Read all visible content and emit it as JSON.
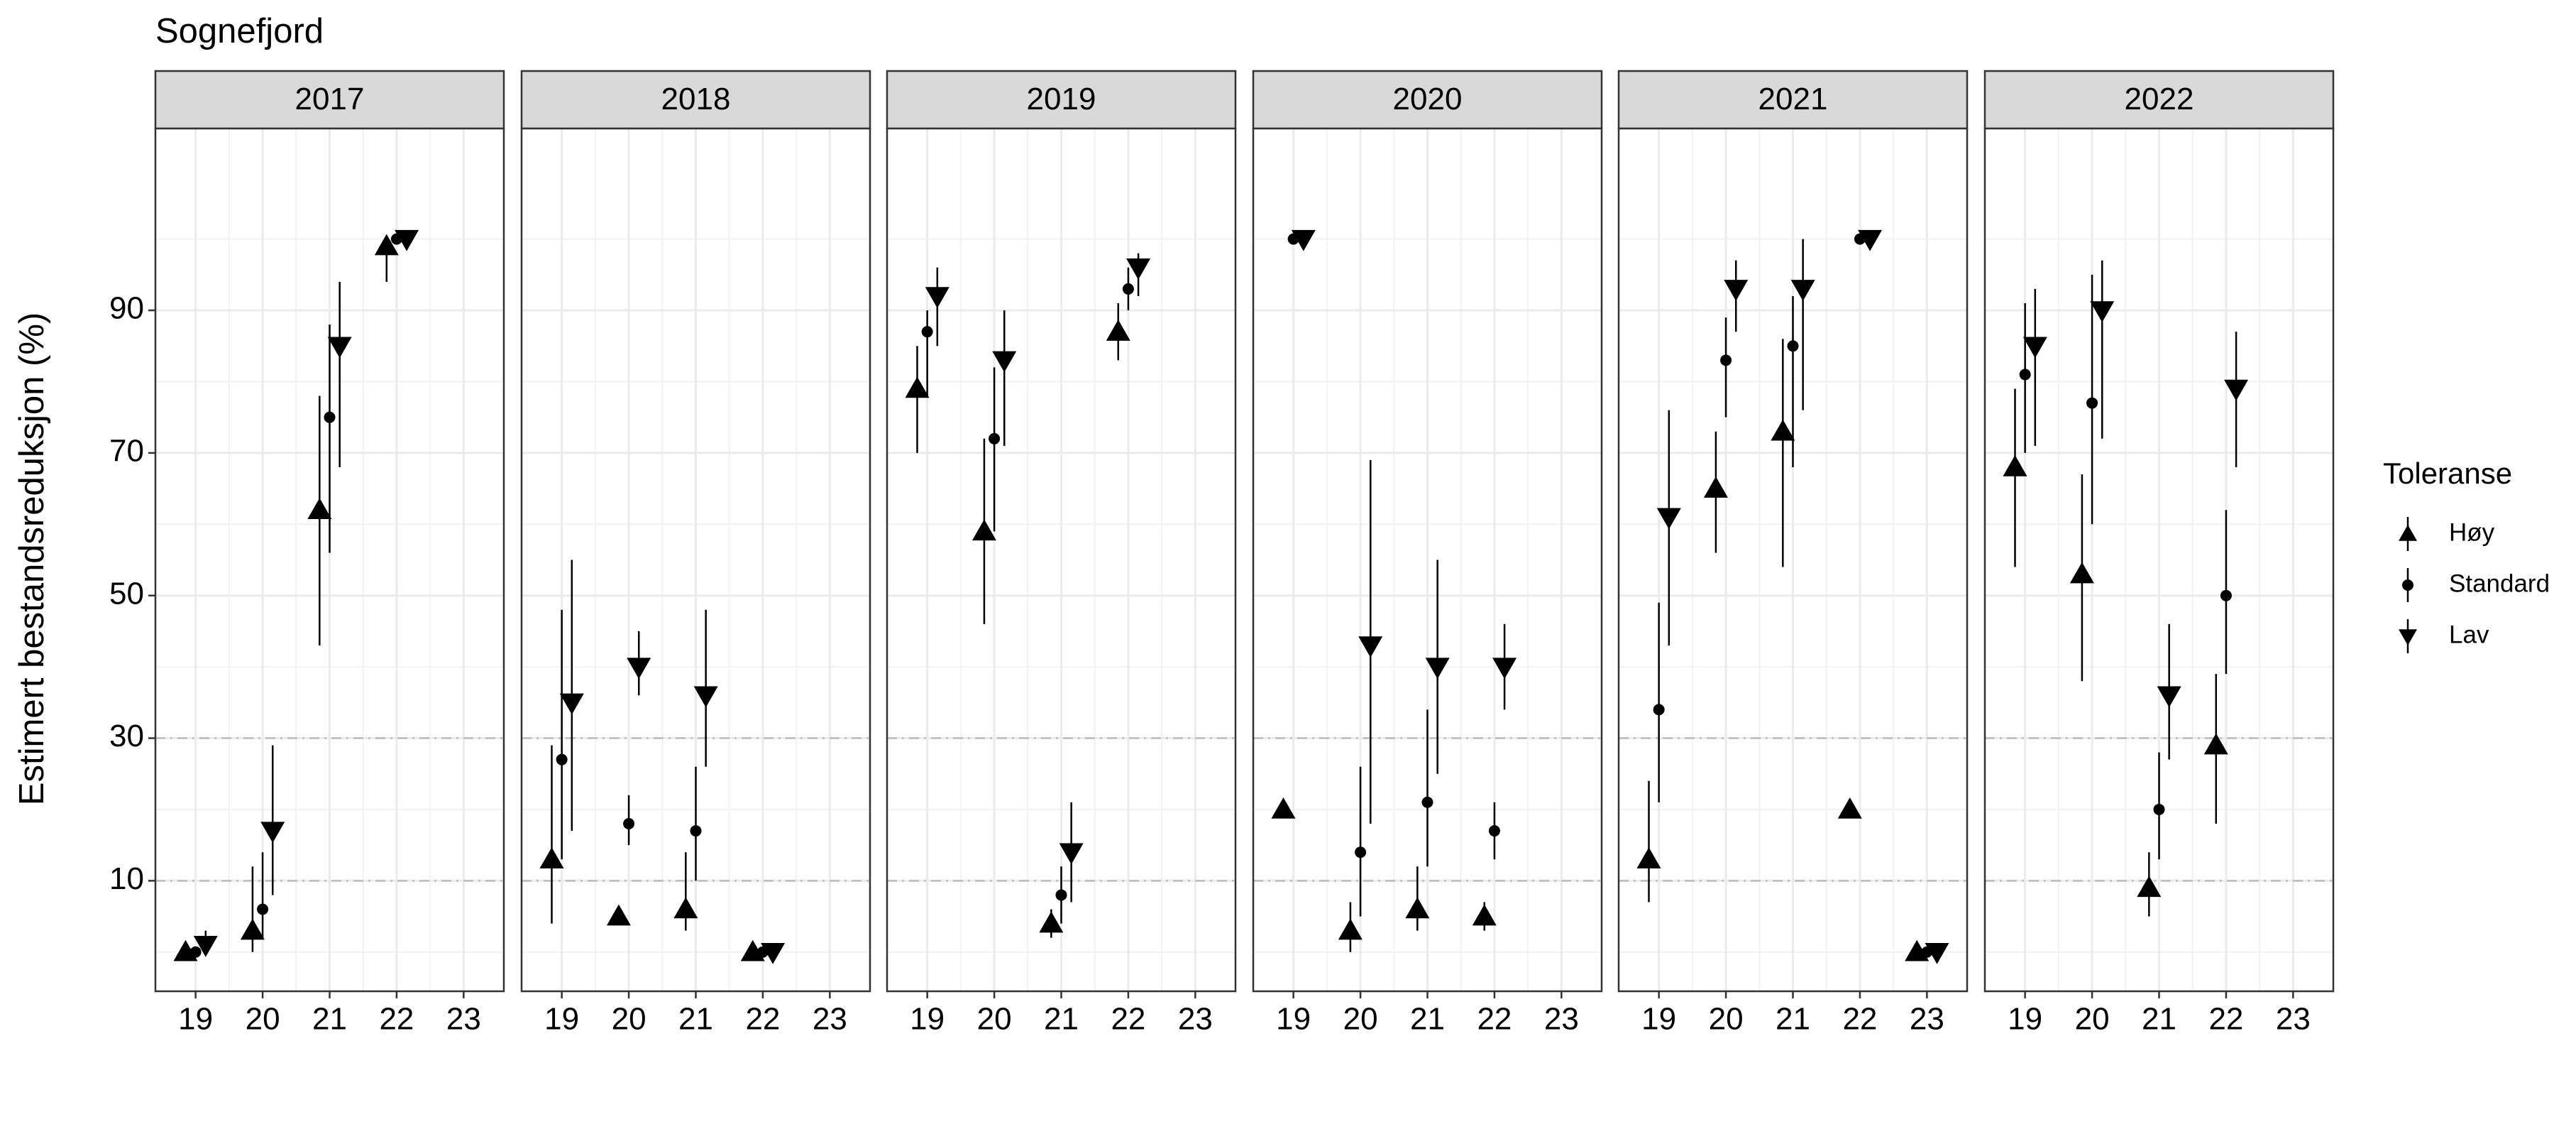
{
  "chart_data": {
    "type": "scatter",
    "title": "Sognefjord",
    "y_label": "Estimert bestandsreduksjon (%)",
    "legend_title": "Toleranse",
    "series": [
      {
        "name": "Høy",
        "marker": "triangle-up",
        "color": "#000000"
      },
      {
        "name": "Standard",
        "marker": "circle",
        "color": "#000000"
      },
      {
        "name": "Lav",
        "marker": "triangle-down",
        "color": "#000000"
      }
    ],
    "xlim": [
      18.4,
      23.6
    ],
    "xticks": [
      19,
      20,
      21,
      22,
      23
    ],
    "ylim": [
      -5.5,
      115.5
    ],
    "yticks": [
      10,
      30,
      50,
      70,
      90
    ],
    "hlines": [
      10,
      30
    ],
    "grid": true,
    "legend_position": "right",
    "panels": [
      {
        "title": "2017",
        "x": [
          19,
          20,
          21,
          22,
          23
        ],
        "series": [
          {
            "values": [
              0,
              3,
              62,
              99,
              null
            ],
            "lower": [
              null,
              0,
              43,
              94,
              null
            ],
            "upper": [
              null,
              12,
              78,
              100,
              null
            ]
          },
          {
            "values": [
              0,
              6,
              75,
              100,
              null
            ],
            "lower": [
              null,
              2,
              56,
              null,
              null
            ],
            "upper": [
              null,
              14,
              88,
              null,
              null
            ]
          },
          {
            "values": [
              1,
              17,
              85,
              100,
              null
            ],
            "lower": [
              0,
              8,
              68,
              null,
              null
            ],
            "upper": [
              3,
              29,
              94,
              null,
              null
            ]
          }
        ]
      },
      {
        "title": "2018",
        "x": [
          19,
          20,
          21,
          22,
          23
        ],
        "series": [
          {
            "values": [
              13,
              5,
              6,
              0,
              null
            ],
            "lower": [
              4,
              null,
              3,
              null,
              null
            ],
            "upper": [
              29,
              null,
              14,
              null,
              null
            ]
          },
          {
            "values": [
              27,
              18,
              17,
              0,
              null
            ],
            "lower": [
              13,
              15,
              10,
              null,
              null
            ],
            "upper": [
              48,
              22,
              26,
              null,
              null
            ]
          },
          {
            "values": [
              35,
              40,
              36,
              0,
              null
            ],
            "lower": [
              17,
              36,
              26,
              null,
              null
            ],
            "upper": [
              55,
              45,
              48,
              null,
              null
            ]
          }
        ]
      },
      {
        "title": "2019",
        "x": [
          19,
          20,
          21,
          22,
          23
        ],
        "series": [
          {
            "values": [
              79,
              59,
              4,
              87,
              null
            ],
            "lower": [
              70,
              46,
              2,
              83,
              null
            ],
            "upper": [
              85,
              72,
              6,
              91,
              null
            ]
          },
          {
            "values": [
              87,
              72,
              8,
              93,
              null
            ],
            "lower": [
              78,
              59,
              4,
              90,
              null
            ],
            "upper": [
              90,
              82,
              12,
              96,
              null
            ]
          },
          {
            "values": [
              92,
              83,
              14,
              96,
              null
            ],
            "lower": [
              85,
              71,
              7,
              92,
              null
            ],
            "upper": [
              96,
              90,
              21,
              98,
              null
            ]
          }
        ]
      },
      {
        "title": "2020",
        "x": [
          19,
          20,
          21,
          22,
          23
        ],
        "series": [
          {
            "values": [
              20,
              3,
              6,
              5,
              null
            ],
            "lower": [
              null,
              0,
              3,
              3,
              null
            ],
            "upper": [
              null,
              7,
              12,
              7,
              null
            ]
          },
          {
            "values": [
              100,
              14,
              21,
              17,
              null
            ],
            "lower": [
              null,
              5,
              12,
              13,
              null
            ],
            "upper": [
              null,
              26,
              34,
              21,
              null
            ]
          },
          {
            "values": [
              100,
              43,
              40,
              40,
              null
            ],
            "lower": [
              null,
              18,
              25,
              34,
              null
            ],
            "upper": [
              null,
              69,
              55,
              46,
              null
            ]
          }
        ]
      },
      {
        "title": "2021",
        "x": [
          19,
          20,
          21,
          22,
          23
        ],
        "series": [
          {
            "values": [
              13,
              65,
              73,
              20,
              0
            ],
            "lower": [
              7,
              56,
              54,
              null,
              null
            ],
            "upper": [
              24,
              73,
              86,
              null,
              null
            ]
          },
          {
            "values": [
              34,
              83,
              85,
              100,
              0
            ],
            "lower": [
              21,
              75,
              68,
              null,
              null
            ],
            "upper": [
              49,
              89,
              92,
              null,
              null
            ]
          },
          {
            "values": [
              61,
              93,
              93,
              100,
              0
            ],
            "lower": [
              43,
              87,
              76,
              null,
              null
            ],
            "upper": [
              76,
              97,
              100,
              null,
              null
            ]
          }
        ]
      },
      {
        "title": "2022",
        "x": [
          19,
          20,
          21,
          22,
          23
        ],
        "series": [
          {
            "values": [
              68,
              53,
              9,
              29,
              null
            ],
            "lower": [
              54,
              38,
              5,
              18,
              null
            ],
            "upper": [
              79,
              67,
              14,
              39,
              null
            ]
          },
          {
            "values": [
              81,
              77,
              20,
              50,
              null
            ],
            "lower": [
              70,
              60,
              13,
              39,
              null
            ],
            "upper": [
              91,
              95,
              28,
              62,
              null
            ]
          },
          {
            "values": [
              85,
              90,
              36,
              79,
              null
            ],
            "lower": [
              71,
              72,
              27,
              68,
              null
            ],
            "upper": [
              93,
              97,
              46,
              87,
              null
            ]
          }
        ]
      }
    ]
  }
}
